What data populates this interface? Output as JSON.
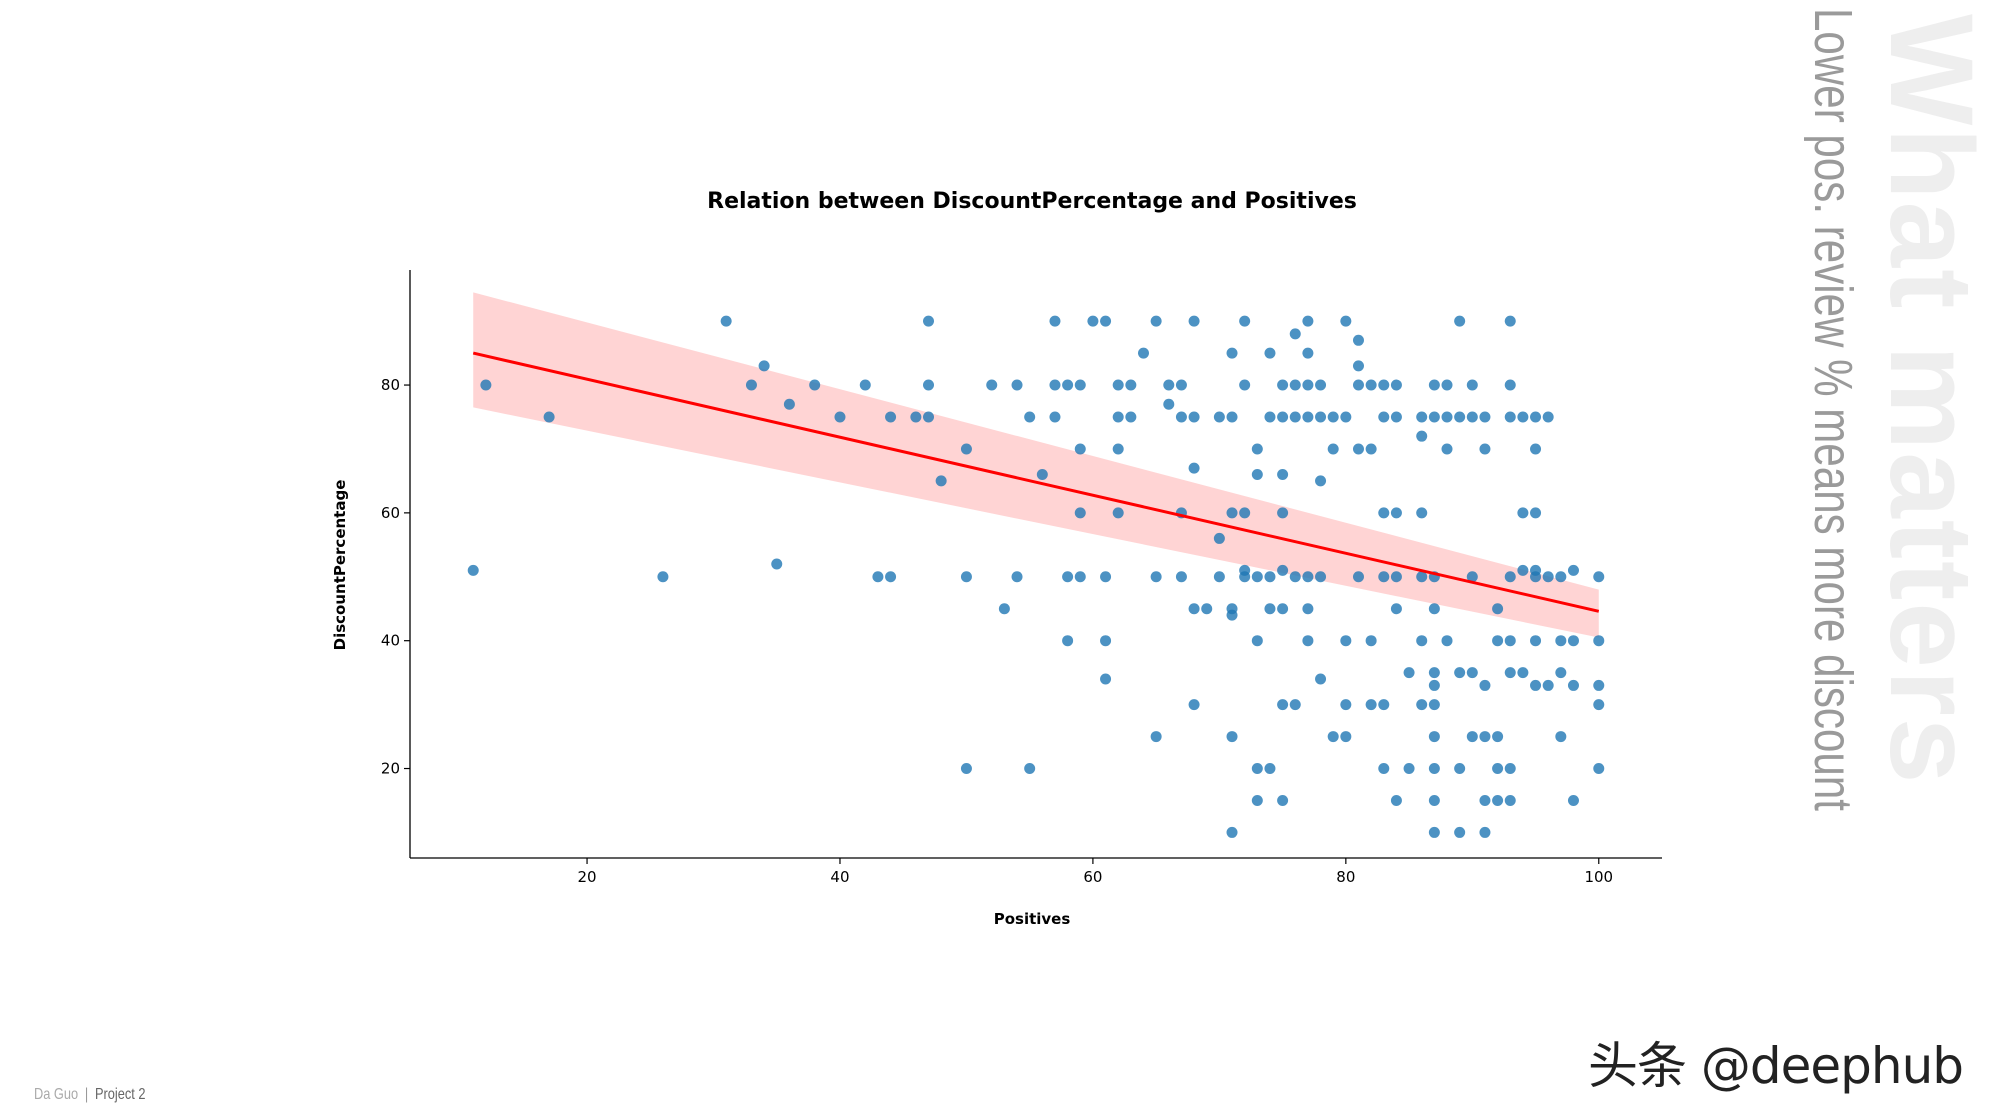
{
  "side_title": "What matters",
  "side_subtitle": "Lower pos. review % means more discount",
  "footer": {
    "author": "Da Guo",
    "separator": "|",
    "project": "Project 2"
  },
  "watermark": "头条 @deephub",
  "chart_data": {
    "type": "scatter",
    "title": "Relation between DiscountPercentage and Positives",
    "xlabel": "Positives",
    "ylabel": "DiscountPercentage",
    "xlim": [
      6,
      105
    ],
    "ylim": [
      6,
      98
    ],
    "xticks": [
      20,
      40,
      60,
      80,
      100
    ],
    "yticks": [
      20,
      40,
      60,
      80
    ],
    "grid": false,
    "colors": {
      "points": "#1f77b4",
      "regression": "#ff0000",
      "band": "#ffb0b0"
    },
    "regression": {
      "x": [
        11,
        100
      ],
      "y": [
        85,
        44.6
      ],
      "ci_upper": [
        94.5,
        48
      ],
      "ci_lower": [
        76.5,
        40.5
      ]
    },
    "points": [
      [
        11,
        51
      ],
      [
        12,
        80
      ],
      [
        17,
        75
      ],
      [
        26,
        50
      ],
      [
        31,
        90
      ],
      [
        33,
        80
      ],
      [
        34,
        83
      ],
      [
        35,
        52
      ],
      [
        36,
        77
      ],
      [
        38,
        80
      ],
      [
        40,
        75
      ],
      [
        42,
        80
      ],
      [
        43,
        50
      ],
      [
        44,
        50
      ],
      [
        44,
        75
      ],
      [
        46,
        75
      ],
      [
        47,
        90
      ],
      [
        47,
        80
      ],
      [
        47,
        75
      ],
      [
        48,
        65
      ],
      [
        50,
        70
      ],
      [
        50,
        50
      ],
      [
        50,
        20
      ],
      [
        52,
        80
      ],
      [
        53,
        45
      ],
      [
        54,
        80
      ],
      [
        54,
        50
      ],
      [
        55,
        75
      ],
      [
        55,
        20
      ],
      [
        56,
        66
      ],
      [
        57,
        90
      ],
      [
        57,
        80
      ],
      [
        57,
        75
      ],
      [
        58,
        80
      ],
      [
        58,
        50
      ],
      [
        58,
        40
      ],
      [
        59,
        80
      ],
      [
        59,
        70
      ],
      [
        59,
        60
      ],
      [
        59,
        50
      ],
      [
        60,
        90
      ],
      [
        61,
        90
      ],
      [
        61,
        50
      ],
      [
        61,
        40
      ],
      [
        61,
        34
      ],
      [
        62,
        80
      ],
      [
        62,
        75
      ],
      [
        62,
        70
      ],
      [
        62,
        60
      ],
      [
        63,
        80
      ],
      [
        63,
        75
      ],
      [
        64,
        85
      ],
      [
        65,
        90
      ],
      [
        65,
        50
      ],
      [
        65,
        25
      ],
      [
        66,
        80
      ],
      [
        66,
        77
      ],
      [
        67,
        80
      ],
      [
        67,
        75
      ],
      [
        67,
        60
      ],
      [
        67,
        50
      ],
      [
        68,
        90
      ],
      [
        68,
        75
      ],
      [
        68,
        67
      ],
      [
        68,
        45
      ],
      [
        68,
        30
      ],
      [
        69,
        45
      ],
      [
        70,
        75
      ],
      [
        70,
        56
      ],
      [
        70,
        50
      ],
      [
        71,
        85
      ],
      [
        71,
        75
      ],
      [
        71,
        60
      ],
      [
        71,
        45
      ],
      [
        71,
        44
      ],
      [
        71,
        25
      ],
      [
        71,
        10
      ],
      [
        72,
        90
      ],
      [
        72,
        80
      ],
      [
        72,
        60
      ],
      [
        72,
        51
      ],
      [
        72,
        50
      ],
      [
        73,
        70
      ],
      [
        73,
        66
      ],
      [
        73,
        50
      ],
      [
        73,
        40
      ],
      [
        73,
        20
      ],
      [
        73,
        15
      ],
      [
        74,
        85
      ],
      [
        74,
        75
      ],
      [
        74,
        50
      ],
      [
        74,
        45
      ],
      [
        74,
        20
      ],
      [
        75,
        80
      ],
      [
        75,
        75
      ],
      [
        75,
        66
      ],
      [
        75,
        60
      ],
      [
        75,
        51
      ],
      [
        75,
        45
      ],
      [
        75,
        30
      ],
      [
        75,
        15
      ],
      [
        76,
        88
      ],
      [
        76,
        80
      ],
      [
        76,
        75
      ],
      [
        76,
        50
      ],
      [
        76,
        30
      ],
      [
        77,
        90
      ],
      [
        77,
        85
      ],
      [
        77,
        80
      ],
      [
        77,
        75
      ],
      [
        77,
        50
      ],
      [
        77,
        45
      ],
      [
        77,
        40
      ],
      [
        78,
        80
      ],
      [
        78,
        75
      ],
      [
        78,
        65
      ],
      [
        78,
        50
      ],
      [
        78,
        34
      ],
      [
        79,
        75
      ],
      [
        79,
        70
      ],
      [
        79,
        25
      ],
      [
        80,
        90
      ],
      [
        80,
        75
      ],
      [
        80,
        40
      ],
      [
        80,
        30
      ],
      [
        80,
        25
      ],
      [
        81,
        87
      ],
      [
        81,
        83
      ],
      [
        81,
        80
      ],
      [
        81,
        70
      ],
      [
        81,
        50
      ],
      [
        82,
        80
      ],
      [
        82,
        70
      ],
      [
        82,
        40
      ],
      [
        82,
        30
      ],
      [
        83,
        80
      ],
      [
        83,
        75
      ],
      [
        83,
        60
      ],
      [
        83,
        50
      ],
      [
        83,
        30
      ],
      [
        83,
        20
      ],
      [
        84,
        80
      ],
      [
        84,
        75
      ],
      [
        84,
        60
      ],
      [
        84,
        50
      ],
      [
        84,
        45
      ],
      [
        84,
        15
      ],
      [
        85,
        35
      ],
      [
        85,
        20
      ],
      [
        86,
        75
      ],
      [
        86,
        72
      ],
      [
        86,
        60
      ],
      [
        86,
        50
      ],
      [
        86,
        40
      ],
      [
        86,
        30
      ],
      [
        87,
        80
      ],
      [
        87,
        75
      ],
      [
        87,
        50
      ],
      [
        87,
        45
      ],
      [
        87,
        35
      ],
      [
        87,
        33
      ],
      [
        87,
        30
      ],
      [
        87,
        25
      ],
      [
        87,
        20
      ],
      [
        87,
        15
      ],
      [
        87,
        10
      ],
      [
        88,
        80
      ],
      [
        88,
        75
      ],
      [
        88,
        70
      ],
      [
        88,
        40
      ],
      [
        89,
        90
      ],
      [
        89,
        75
      ],
      [
        89,
        35
      ],
      [
        89,
        20
      ],
      [
        89,
        10
      ],
      [
        90,
        80
      ],
      [
        90,
        75
      ],
      [
        90,
        50
      ],
      [
        90,
        35
      ],
      [
        90,
        25
      ],
      [
        91,
        75
      ],
      [
        91,
        70
      ],
      [
        91,
        33
      ],
      [
        91,
        25
      ],
      [
        91,
        15
      ],
      [
        91,
        10
      ],
      [
        92,
        45
      ],
      [
        92,
        40
      ],
      [
        92,
        25
      ],
      [
        92,
        20
      ],
      [
        92,
        15
      ],
      [
        93,
        90
      ],
      [
        93,
        80
      ],
      [
        93,
        75
      ],
      [
        93,
        50
      ],
      [
        93,
        40
      ],
      [
        93,
        35
      ],
      [
        93,
        20
      ],
      [
        93,
        15
      ],
      [
        94,
        75
      ],
      [
        94,
        60
      ],
      [
        94,
        51
      ],
      [
        94,
        35
      ],
      [
        95,
        75
      ],
      [
        95,
        70
      ],
      [
        95,
        60
      ],
      [
        95,
        51
      ],
      [
        95,
        50
      ],
      [
        95,
        40
      ],
      [
        95,
        33
      ],
      [
        96,
        75
      ],
      [
        96,
        50
      ],
      [
        96,
        33
      ],
      [
        97,
        50
      ],
      [
        97,
        40
      ],
      [
        97,
        35
      ],
      [
        97,
        25
      ],
      [
        98,
        51
      ],
      [
        98,
        40
      ],
      [
        98,
        33
      ],
      [
        98,
        15
      ],
      [
        100,
        50
      ],
      [
        100,
        40
      ],
      [
        100,
        33
      ],
      [
        100,
        30
      ],
      [
        100,
        20
      ]
    ]
  }
}
